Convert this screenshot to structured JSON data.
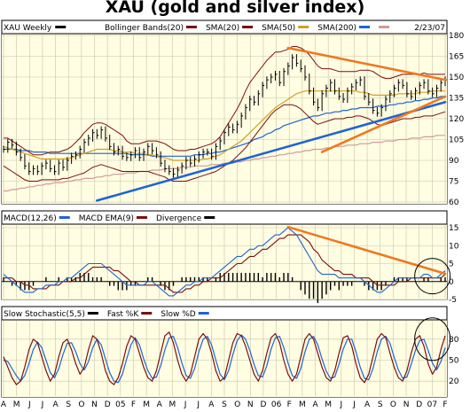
{
  "chart_data": [
    {
      "type": "line",
      "title": "XAU  (gold and silver index)",
      "legend": {
        "symbol": "XAU Weekly",
        "date": "2/23/07",
        "items": [
          {
            "label": "Bollinger Bands(20)",
            "color": "#7a1010"
          },
          {
            "label": "SMA(20)",
            "color": "#7a1010"
          },
          {
            "label": "SMA(50)",
            "color": "#d2a020"
          },
          {
            "label": "SMA(200)",
            "color": "#1e64d2"
          },
          {
            "label": "",
            "color": "#d09a9a"
          }
        ]
      },
      "price_colors": {
        "price": "#000000",
        "bollinger": "#7a1010",
        "sma50": "#d2a020",
        "sma200": "#1e64d2",
        "long_ma": "#d09a9a",
        "trendline": "#1e64d2",
        "resistance": "#f07820"
      },
      "ylim": [
        60,
        180
      ],
      "y_ticks": [
        60,
        75,
        90,
        105,
        120,
        135,
        150,
        165,
        180
      ],
      "grid": true,
      "x_ticks": [
        "A",
        "M",
        "J",
        "J",
        "A",
        "S",
        "O",
        "N",
        "D",
        "05",
        "F",
        "M",
        "A",
        "M",
        "J",
        "J",
        "A",
        "S",
        "O",
        "N",
        "D",
        "06",
        "F",
        "M",
        "A",
        "M",
        "J",
        "J",
        "A",
        "S",
        "O",
        "N",
        "D",
        "07",
        "F"
      ],
      "price_weekly_close": [
        98,
        103,
        101,
        96,
        92,
        86,
        82,
        84,
        82,
        86,
        88,
        84,
        82,
        88,
        85,
        90,
        93,
        94,
        98,
        103,
        106,
        110,
        108,
        112,
        106,
        100,
        96,
        98,
        93,
        92,
        94,
        97,
        92,
        96,
        100,
        97,
        94,
        88,
        84,
        82,
        80,
        83,
        86,
        90,
        88,
        91,
        94,
        96,
        96,
        93,
        100,
        104,
        110,
        114,
        112,
        116,
        122,
        128,
        134,
        132,
        138,
        144,
        148,
        150,
        152,
        146,
        154,
        158,
        164,
        160,
        156,
        150,
        140,
        132,
        128,
        138,
        142,
        146,
        140,
        136,
        134,
        140,
        143,
        146,
        148,
        136,
        132,
        126,
        124,
        128,
        134,
        138,
        142,
        146,
        144,
        138,
        136,
        140,
        144,
        146,
        140,
        138,
        142,
        146,
        148
      ],
      "bollinger_upper": [
        106,
        106,
        104,
        102,
        100,
        98,
        96,
        94,
        94,
        94,
        95,
        96,
        96,
        96,
        97,
        98,
        100,
        103,
        106,
        110,
        113,
        116,
        117,
        117,
        116,
        114,
        112,
        110,
        108,
        104,
        102,
        102,
        102,
        103,
        104,
        104,
        104,
        103,
        102,
        100,
        98,
        97,
        97,
        97,
        98,
        98,
        99,
        100,
        101,
        102,
        104,
        107,
        112,
        117,
        122,
        127,
        133,
        140,
        146,
        150,
        154,
        158,
        162,
        165,
        168,
        168,
        169,
        170,
        172,
        172,
        171,
        169,
        166,
        162,
        158,
        156,
        156,
        156,
        155,
        154,
        154,
        154,
        154,
        154,
        155,
        155,
        155,
        154,
        152,
        150,
        149,
        149,
        150,
        151,
        152,
        152,
        152,
        152,
        152,
        153,
        152,
        152,
        152,
        152,
        152
      ],
      "bollinger_lower": [
        86,
        84,
        82,
        80,
        78,
        76,
        75,
        75,
        75,
        76,
        76,
        76,
        76,
        76,
        77,
        77,
        78,
        79,
        80,
        81,
        83,
        85,
        86,
        87,
        86,
        85,
        84,
        83,
        82,
        82,
        82,
        82,
        82,
        82,
        82,
        81,
        80,
        79,
        78,
        76,
        75,
        75,
        75,
        75,
        76,
        77,
        78,
        79,
        80,
        81,
        82,
        84,
        86,
        88,
        90,
        93,
        96,
        99,
        103,
        107,
        111,
        115,
        119,
        123,
        126,
        128,
        130,
        130,
        130,
        129,
        127,
        124,
        121,
        118,
        116,
        117,
        118,
        119,
        120,
        120,
        120,
        121,
        121,
        122,
        122,
        121,
        120,
        118,
        116,
        115,
        116,
        117,
        118,
        119,
        120,
        120,
        120,
        121,
        121,
        122,
        122,
        122,
        123,
        124,
        125
      ],
      "sma50": [
        100,
        99,
        98,
        97,
        96,
        95,
        94,
        93,
        92,
        91,
        91,
        91,
        91,
        91,
        91,
        91,
        92,
        93,
        94,
        95,
        96,
        97,
        98,
        98,
        98,
        98,
        97,
        97,
        96,
        96,
        96,
        95,
        95,
        95,
        94,
        94,
        93,
        92,
        92,
        91,
        90,
        90,
        90,
        90,
        90,
        90,
        90,
        91,
        91,
        92,
        93,
        94,
        96,
        98,
        100,
        102,
        104,
        107,
        110,
        113,
        116,
        119,
        122,
        125,
        128,
        130,
        132,
        134,
        136,
        138,
        139,
        140,
        140,
        140,
        140,
        140,
        140,
        140,
        140,
        140,
        140,
        140,
        140,
        140,
        139,
        139,
        138,
        137,
        137,
        137,
        137,
        137,
        137,
        138,
        138,
        138,
        138,
        138,
        139,
        139,
        139,
        140,
        140,
        140,
        140
      ],
      "sma200": [
        98,
        98,
        98,
        98,
        97,
        97,
        97,
        96,
        96,
        96,
        96,
        95,
        95,
        95,
        95,
        95,
        95,
        95,
        95,
        95,
        95,
        95,
        95,
        95,
        95,
        95,
        95,
        95,
        95,
        95,
        94,
        94,
        94,
        94,
        94,
        93,
        93,
        93,
        93,
        93,
        93,
        93,
        93,
        93,
        93,
        94,
        94,
        94,
        95,
        95,
        96,
        96,
        97,
        98,
        99,
        100,
        101,
        102,
        103,
        105,
        106,
        107,
        109,
        110,
        112,
        113,
        115,
        116,
        117,
        118,
        119,
        120,
        121,
        122,
        122,
        123,
        124,
        124,
        125,
        125,
        126,
        126,
        127,
        127,
        128,
        128,
        128,
        128,
        129,
        129,
        129,
        130,
        130,
        131,
        131,
        132,
        132,
        133,
        133,
        134,
        134,
        135,
        135,
        136,
        136
      ],
      "long_ma": [
        68,
        68,
        69,
        69,
        70,
        70,
        71,
        71,
        72,
        72,
        73,
        73,
        74,
        74,
        74,
        75,
        75,
        76,
        76,
        77,
        77,
        77,
        78,
        78,
        79,
        79,
        80,
        80,
        80,
        81,
        81,
        81,
        82,
        82,
        82,
        83,
        83,
        83,
        84,
        84,
        84,
        84,
        85,
        85,
        85,
        86,
        86,
        86,
        86,
        87,
        87,
        87,
        88,
        88,
        88,
        89,
        89,
        90,
        90,
        91,
        91,
        92,
        92,
        93,
        93,
        94,
        94,
        95,
        95,
        96,
        96,
        97,
        97,
        98,
        98,
        98,
        99,
        99,
        100,
        100,
        100,
        101,
        101,
        101,
        102,
        102,
        102,
        103,
        103,
        103,
        104,
        104,
        104,
        105,
        105,
        105,
        106,
        106,
        106,
        107,
        107,
        107,
        108,
        108,
        108
      ],
      "trendlines": [
        {
          "color": "blue",
          "from": [
            22,
            61
          ],
          "to": [
            104,
            132
          ]
        },
        {
          "color": "orange",
          "from": [
            67,
            171
          ],
          "to": [
            104,
            148
          ]
        },
        {
          "color": "orange",
          "from": [
            75,
            96
          ],
          "to": [
            104,
            136
          ]
        }
      ]
    },
    {
      "type": "line",
      "legend": {
        "items": [
          {
            "label": "MACD(12,26)",
            "color": "#1e64d2"
          },
          {
            "label": "MACD EMA(9)",
            "color": "#7a1010"
          },
          {
            "label": "Divergence",
            "color": "#000000"
          }
        ]
      },
      "ylim": [
        -5,
        15
      ],
      "y_ticks": [
        -5,
        0,
        5,
        10,
        15
      ],
      "macd": [
        2,
        1,
        0,
        -1,
        -2,
        -3,
        -3,
        -3,
        -2,
        -2,
        -1,
        -1,
        -1,
        0,
        0,
        1,
        1,
        2,
        3,
        4,
        5,
        5,
        5,
        5,
        4,
        3,
        2,
        1,
        0,
        -1,
        -1,
        -1,
        -1,
        -1,
        0,
        0,
        -1,
        -2,
        -3,
        -4,
        -4,
        -3,
        -2,
        -1,
        -1,
        0,
        0,
        1,
        1,
        1,
        2,
        3,
        4,
        5,
        6,
        7,
        7,
        8,
        9,
        9,
        10,
        10,
        11,
        12,
        13,
        13,
        14,
        15,
        14,
        13,
        11,
        9,
        7,
        5,
        3,
        2,
        2,
        2,
        2,
        1,
        1,
        1,
        1,
        1,
        1,
        0,
        -1,
        -2,
        -3,
        -3,
        -2,
        -1,
        0,
        1,
        1,
        1,
        1,
        1,
        1,
        2,
        2,
        1,
        1,
        2,
        3
      ],
      "signal": [
        1,
        1,
        1,
        0,
        0,
        -1,
        -1,
        -2,
        -2,
        -2,
        -2,
        -1,
        -1,
        -1,
        0,
        0,
        0,
        1,
        1,
        2,
        3,
        4,
        4,
        4,
        4,
        4,
        3,
        3,
        2,
        1,
        0,
        0,
        -1,
        -1,
        -1,
        -1,
        -1,
        -1,
        -1,
        -2,
        -3,
        -3,
        -3,
        -2,
        -2,
        -1,
        -1,
        0,
        0,
        1,
        1,
        1,
        2,
        3,
        4,
        5,
        5,
        6,
        7,
        7,
        8,
        9,
        9,
        10,
        11,
        12,
        12,
        13,
        13,
        13,
        13,
        12,
        11,
        9,
        8,
        6,
        5,
        4,
        3,
        3,
        2,
        2,
        2,
        1,
        1,
        1,
        1,
        0,
        -1,
        -1,
        -1,
        -1,
        -1,
        0,
        0,
        0,
        1,
        1,
        1,
        1,
        1,
        1,
        1,
        1,
        2
      ],
      "ellipse_annotation": true
    },
    {
      "type": "line",
      "legend": {
        "items": [
          {
            "label": "Slow Stochastic(5,5)",
            "color": "#000000"
          },
          {
            "label": "Fast %K",
            "color": "#7a1010"
          },
          {
            "label": "Slow %D",
            "color": "#1e64d2"
          }
        ]
      },
      "ylim": [
        0,
        100
      ],
      "y_ticks": [
        20,
        50,
        80
      ],
      "percent_k": [
        55,
        40,
        25,
        15,
        20,
        40,
        65,
        80,
        75,
        55,
        35,
        20,
        30,
        55,
        75,
        80,
        65,
        45,
        30,
        40,
        65,
        85,
        80,
        60,
        35,
        20,
        15,
        25,
        45,
        70,
        85,
        80,
        60,
        40,
        25,
        20,
        35,
        60,
        85,
        90,
        75,
        50,
        30,
        20,
        30,
        55,
        80,
        88,
        80,
        60,
        35,
        20,
        25,
        50,
        75,
        88,
        85,
        70,
        50,
        30,
        20,
        35,
        60,
        82,
        88,
        75,
        50,
        30,
        20,
        30,
        55,
        80,
        88,
        80,
        60,
        40,
        25,
        20,
        35,
        60,
        82,
        85,
        70,
        45,
        25,
        18,
        30,
        55,
        80,
        88,
        82,
        60,
        40,
        25,
        20,
        35,
        60,
        80,
        85,
        70,
        45,
        30,
        40,
        65,
        85
      ],
      "percent_d": [
        50,
        48,
        38,
        28,
        20,
        28,
        45,
        65,
        76,
        68,
        50,
        32,
        25,
        38,
        58,
        74,
        75,
        62,
        45,
        36,
        48,
        68,
        80,
        72,
        52,
        32,
        20,
        18,
        30,
        52,
        72,
        82,
        72,
        52,
        35,
        24,
        26,
        42,
        65,
        82,
        84,
        68,
        46,
        28,
        24,
        38,
        62,
        80,
        84,
        72,
        50,
        30,
        22,
        35,
        58,
        78,
        86,
        80,
        64,
        44,
        28,
        26,
        42,
        66,
        82,
        84,
        68,
        46,
        28,
        24,
        38,
        62,
        80,
        84,
        72,
        52,
        34,
        24,
        26,
        44,
        66,
        80,
        80,
        62,
        40,
        24,
        22,
        38,
        62,
        80,
        84,
        74,
        54,
        36,
        24,
        26,
        44,
        64,
        78,
        80,
        64,
        46,
        36,
        48,
        68
      ],
      "ellipse_annotation": true
    }
  ]
}
